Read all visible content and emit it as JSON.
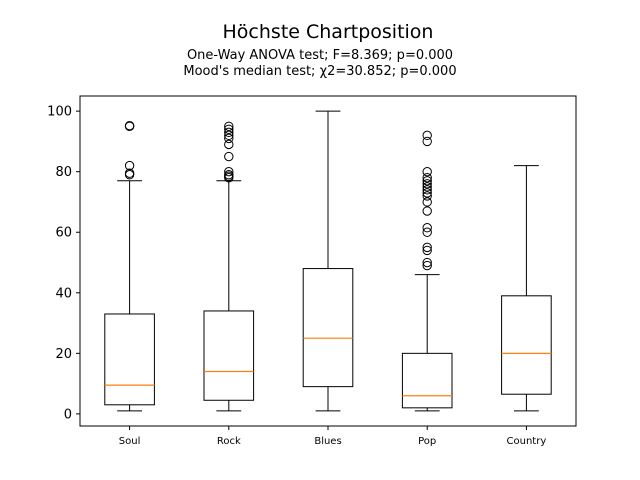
{
  "chart_data": {
    "type": "box",
    "title": "Höchste Chartposition",
    "subtitle_lines": [
      "One-Way ANOVA test; F=8.369; p=0.000",
      "Mood's median test; χ2=30.852; p=0.000"
    ],
    "xlabel": "",
    "ylabel": "",
    "ylim": [
      -4,
      105
    ],
    "yticks": [
      0,
      20,
      40,
      60,
      80,
      100
    ],
    "grid": false,
    "colors": {
      "box": "#000000",
      "median": "#ff7f0e",
      "flier": "#000000"
    },
    "categories": [
      "Soul",
      "Rock",
      "Blues",
      "Pop",
      "Country"
    ],
    "boxes": [
      {
        "whislo": 1,
        "q1": 3,
        "med": 9.5,
        "q3": 33,
        "whishi": 77,
        "fliers": [
          79,
          79.5,
          82,
          95,
          95.2
        ]
      },
      {
        "whislo": 1,
        "q1": 4.5,
        "med": 14,
        "q3": 34,
        "whishi": 77,
        "fliers": [
          78,
          78.5,
          79,
          80,
          85,
          89,
          91,
          92,
          93,
          94,
          95
        ]
      },
      {
        "whislo": 1,
        "q1": 9,
        "med": 25,
        "q3": 48,
        "whishi": 100,
        "fliers": []
      },
      {
        "whislo": 1,
        "q1": 2,
        "med": 6,
        "q3": 20,
        "whishi": 46,
        "fliers": [
          49,
          50,
          54,
          55,
          60,
          61.5,
          67,
          70,
          72,
          73,
          74,
          75,
          76,
          77,
          78,
          80,
          90,
          92
        ]
      },
      {
        "whislo": 1,
        "q1": 6.5,
        "med": 20,
        "q3": 39,
        "whishi": 82,
        "fliers": []
      }
    ]
  }
}
